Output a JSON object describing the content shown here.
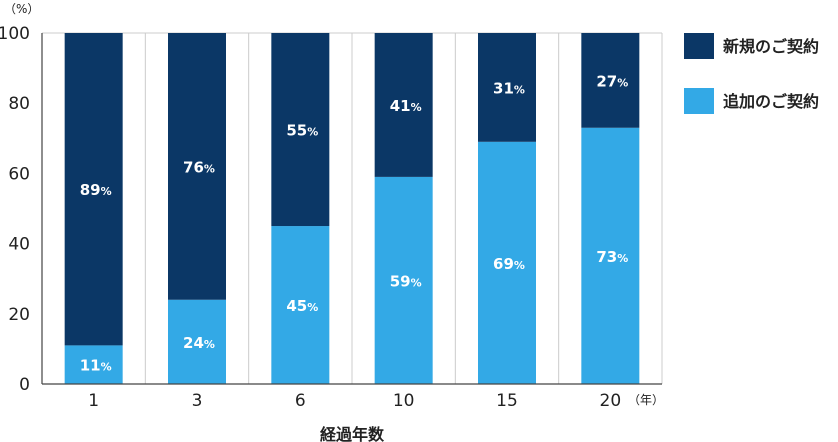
{
  "chart_data": {
    "type": "bar",
    "stacked": true,
    "categories": [
      "1",
      "3",
      "6",
      "10",
      "15",
      "20"
    ],
    "series": [
      {
        "name": "追加のご契約",
        "values": [
          11,
          24,
          45,
          59,
          69,
          73
        ],
        "color": "#33a9e6"
      },
      {
        "name": "新規のご契約",
        "values": [
          89,
          76,
          55,
          41,
          31,
          27
        ],
        "color": "#0b3766"
      }
    ],
    "ylim": [
      0,
      100
    ],
    "yticks": [
      0,
      20,
      40,
      60,
      80,
      100
    ],
    "y_unit": "（%）",
    "x_unit": "（年）",
    "xlabel": "経過年数",
    "value_suffix": "%",
    "legend_order": [
      "新規のご契約",
      "追加のご契約"
    ],
    "grid": "vertical-lines-between-bars",
    "legend_position": "top-right"
  }
}
